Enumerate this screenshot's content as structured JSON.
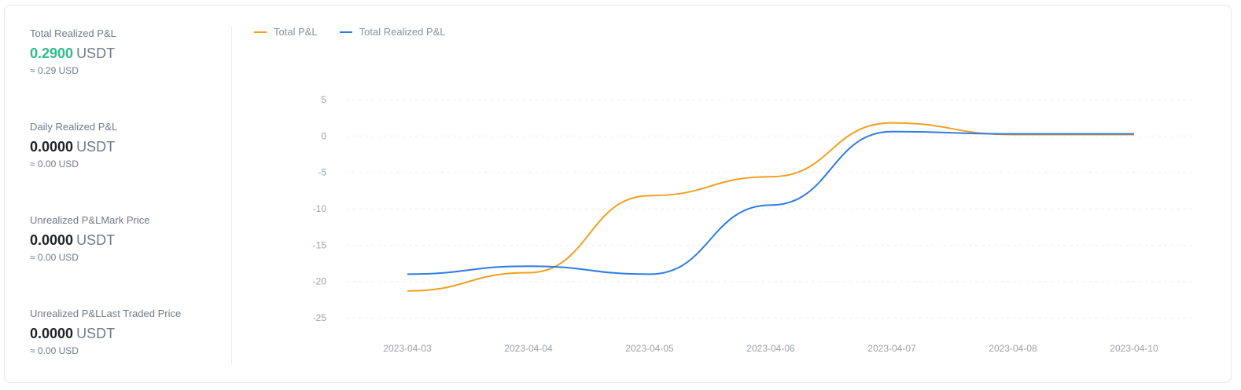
{
  "stats": [
    {
      "title": "Total Realized P&L",
      "value": "0.2900",
      "unit": "USDT",
      "approx": "≈ 0.29 USD",
      "value_color": "#2ebd85"
    },
    {
      "title": "Daily Realized P&L",
      "value": "0.0000",
      "unit": "USDT",
      "approx": "≈ 0.00 USD"
    },
    {
      "title": "Unrealized P&LMark Price",
      "value": "0.0000",
      "unit": "USDT",
      "approx": "≈ 0.00 USD"
    },
    {
      "title": "Unrealized P&LLast Traded Price",
      "value": "0.0000",
      "unit": "USDT",
      "approx": "≈ 0.00 USD"
    }
  ],
  "chart_data": {
    "type": "line",
    "title": "",
    "xlabel": "",
    "ylabel": "",
    "categories": [
      "2023-04-03",
      "2023-04-04",
      "2023-04-05",
      "2023-04-06",
      "2023-04-07",
      "2023-04-08",
      "2023-04-10"
    ],
    "ylim": [
      -25,
      5
    ],
    "yticks": [
      5,
      0,
      -5,
      -10,
      -15,
      -20,
      -25
    ],
    "grid": true,
    "legend_position": "top-left",
    "series": [
      {
        "name": "Total P&L",
        "color": "#f0a020",
        "values": [
          -21.3,
          -18.8,
          -8.2,
          -5.6,
          1.8,
          0.2,
          0.2
        ]
      },
      {
        "name": "Total Realized P&L",
        "color": "#2f7be5",
        "values": [
          -19.0,
          -17.9,
          -19.0,
          -9.5,
          0.6,
          0.29,
          0.29
        ]
      }
    ]
  }
}
